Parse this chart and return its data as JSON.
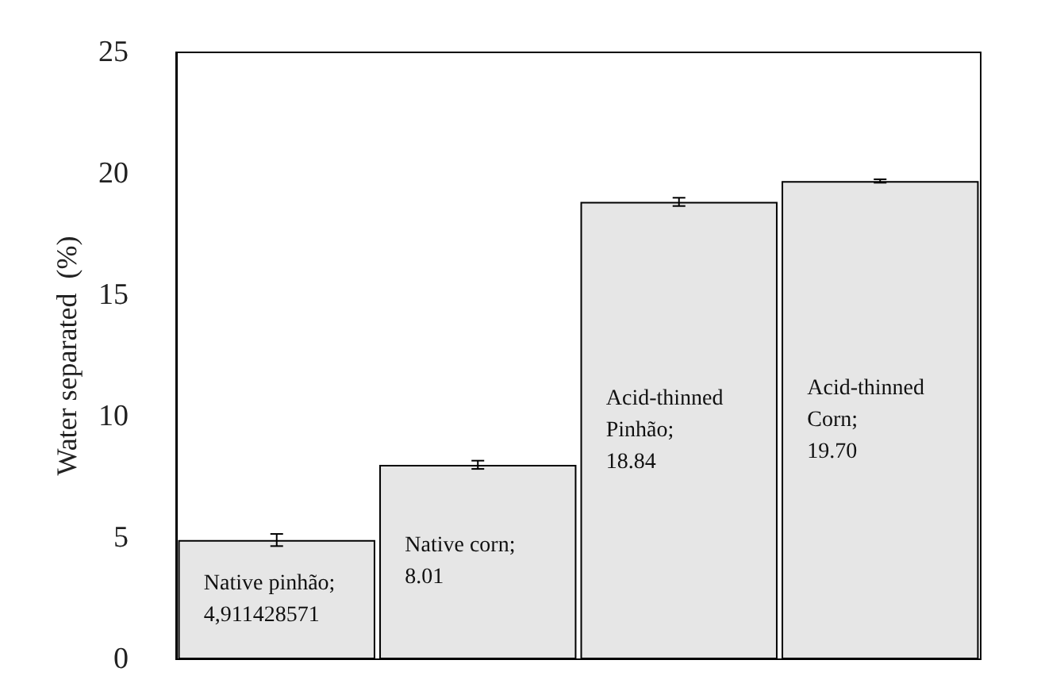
{
  "chart_data": {
    "type": "bar",
    "ylabel": "Water separated  (%)",
    "categories": [
      null,
      null,
      null,
      null
    ],
    "values": [
      4.911428571,
      8.01,
      18.84,
      19.7
    ],
    "errors": [
      0.25,
      0.17,
      0.17,
      0.07
    ],
    "value_labels": [
      "Native pinhão;\n4,911428571",
      "Native corn;\n8.01",
      "Acid-thinned\nPinhão;\n18.84",
      "Acid-thinned\nCorn;\n19.70"
    ],
    "color": "#e6e6e6",
    "ylim": [
      0,
      25
    ],
    "yticks": [
      0,
      5,
      10,
      15,
      20,
      25
    ],
    "grid": false,
    "tick_labels": "y"
  }
}
